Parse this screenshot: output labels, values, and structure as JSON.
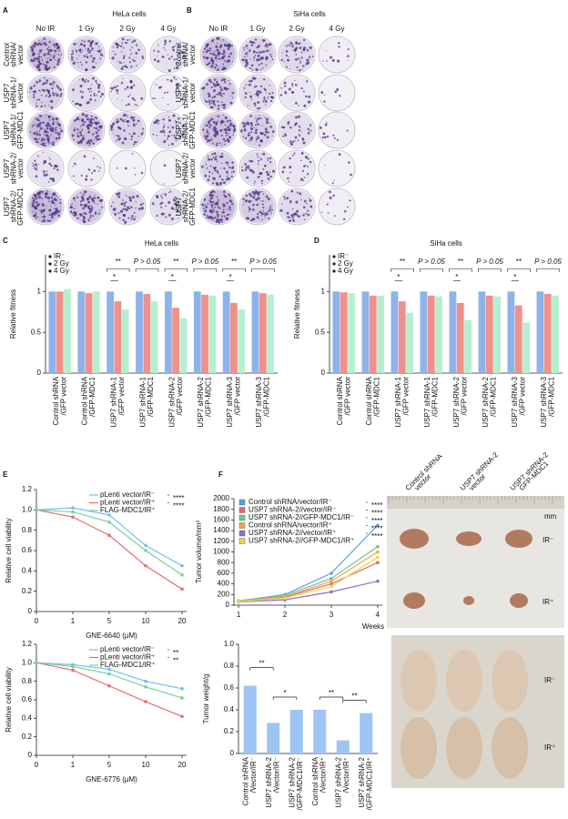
{
  "panel_labels": [
    "A",
    "B",
    "C",
    "D",
    "E",
    "F"
  ],
  "colony_assays": [
    {
      "title": "HeLa cells",
      "columns": [
        "No IR",
        "1 Gy",
        "2 Gy",
        "4 Gy"
      ],
      "rows": [
        [
          "Control",
          "shRNA/",
          "vector"
        ],
        [
          "USP7",
          "shRNA-1/",
          "vector"
        ],
        [
          "USP7",
          "shRNA-1/",
          "GFP-MDC1"
        ],
        [
          "USP7",
          "shRNA-2/",
          "vector"
        ],
        [
          "USP7",
          "shRNA-2/",
          "GFP-MDC1"
        ]
      ]
    },
    {
      "title": "SiHa cells",
      "columns": [
        "No IR",
        "1 Gy",
        "2 Gy",
        "4 Gy"
      ],
      "rows": [
        [
          "Control",
          "shRNA/",
          "vector"
        ],
        [
          "USP7",
          "shRNA-1/",
          "vector"
        ],
        [
          "USP7",
          "shRNA-1/",
          "GFP-MDC1"
        ],
        [
          "USP7",
          "shRNA-2/",
          "vector"
        ],
        [
          "USP7",
          "shRNA-2/",
          "GFP-MDC1"
        ]
      ]
    }
  ],
  "chart_data": [
    {
      "type": "bar",
      "title": "HeLa cells",
      "y_label": "Relative fitness",
      "categories": [
        [
          "Control shRNA",
          "/GFP vector"
        ],
        [
          "Control shRNA",
          "/GFP-MDC1"
        ],
        [
          "USP7 shRNA-1",
          "/GFP vector"
        ],
        [
          "USP7 shRNA-1",
          "/GFP-MDC1"
        ],
        [
          "USP7 shRNA-2",
          "/GFP vector"
        ],
        [
          "USP7 shRNA-2",
          "/GFP-MDC1"
        ],
        [
          "USP7 shRNA-3",
          "/GFP vector"
        ],
        [
          "USP7 shRNA-3",
          "/GFP-MDC1"
        ]
      ],
      "series": [
        {
          "name": "IR⁻",
          "color": "#8db3ea",
          "values": [
            1,
            1,
            1,
            1,
            1,
            1,
            1,
            1
          ]
        },
        {
          "name": "2 Gy",
          "color": "#f0908a",
          "values": [
            1,
            0.98,
            0.88,
            0.97,
            0.8,
            0.96,
            0.86,
            0.98
          ]
        },
        {
          "name": "4 Gy",
          "color": "#b5efcf",
          "values": [
            1.03,
            1,
            0.78,
            0.88,
            0.67,
            0.95,
            0.78,
            0.96
          ]
        }
      ],
      "ylim": [
        0,
        1.45
      ],
      "yticks": [
        0,
        0.5,
        1
      ],
      "annotations": [
        {
          "top": "**",
          "inner": "*"
        },
        {
          "top": "P > 0.05"
        },
        {
          "top": "**",
          "inner": "*"
        },
        {
          "top": "P > 0.05"
        },
        {
          "top": "**",
          "inner": "*"
        },
        {
          "top": "P > 0.05"
        }
      ]
    },
    {
      "type": "bar",
      "title": "SiHa cells",
      "y_label": "Relative fitness",
      "categories": [
        [
          "Control shRNA",
          "/GFP vector"
        ],
        [
          "Control shRNA",
          "/GFP-MDC1"
        ],
        [
          "USP7 shRNA-1",
          "/GFP vector"
        ],
        [
          "USP7 shRNA-1",
          "/GFP-MDC1"
        ],
        [
          "USP7 shRNA-2",
          "/GFP vector"
        ],
        [
          "USP7 shRNA-2",
          "/GFP-MDC1"
        ],
        [
          "USP7 shRNA-3",
          "/GFP vector"
        ],
        [
          "USP7 shRNA-3",
          "/GFP-MDC1"
        ]
      ],
      "series": [
        {
          "name": "IR⁻",
          "color": "#8db3ea",
          "values": [
            1,
            1,
            1,
            1,
            1,
            1,
            1,
            1
          ]
        },
        {
          "name": "2 Gy",
          "color": "#f0908a",
          "values": [
            0.99,
            0.95,
            0.88,
            0.95,
            0.86,
            0.95,
            0.83,
            0.97
          ]
        },
        {
          "name": "4 Gy",
          "color": "#b5efcf",
          "values": [
            0.98,
            0.95,
            0.74,
            0.94,
            0.65,
            0.94,
            0.62,
            0.95
          ]
        }
      ],
      "ylim": [
        0,
        1.45
      ],
      "yticks": [
        0,
        0.5,
        1
      ],
      "annotations": [
        {
          "top": "**",
          "inner": "*"
        },
        {
          "top": "P > 0.05"
        },
        {
          "top": "**",
          "inner": "*"
        },
        {
          "top": "P > 0.05"
        },
        {
          "top": "**",
          "inner": "*"
        },
        {
          "top": "P > 0.05"
        }
      ]
    },
    {
      "type": "line",
      "x_label": "GNE-6640 (μM)",
      "y_label": "Relative cell viability",
      "categories": [
        "0",
        "1",
        "5",
        "10",
        "20"
      ],
      "series": [
        {
          "name": "pLenti vector/IR⁻",
          "color": "#6fbfee",
          "values": [
            1,
            1.02,
            0.95,
            0.65,
            0.45
          ]
        },
        {
          "name": "pLenti vector/IR⁺",
          "color": "#e46d6d",
          "values": [
            1,
            0.93,
            0.75,
            0.45,
            0.22
          ]
        },
        {
          "name": "FLAG-MDC1/IR⁺",
          "color": "#7ccf9c",
          "values": [
            1,
            0.98,
            0.88,
            0.6,
            0.36
          ]
        }
      ],
      "ylim": [
        0,
        1.2
      ],
      "yticks": [
        0,
        0.2,
        0.4,
        0.6,
        0.8,
        {
          "value": 1,
          "label": "1.0"
        },
        1.2
      ],
      "significance": [
        "****",
        "****"
      ]
    },
    {
      "type": "line",
      "x_label": "GNE-6776 (μM)",
      "y_label": "Relative cell viability",
      "categories": [
        "0",
        "1",
        "5",
        "10",
        "20"
      ],
      "series": [
        {
          "name": "pLenti vector/IR⁻",
          "color": "#6fbfee",
          "values": [
            1,
            0.98,
            0.93,
            0.8,
            0.72
          ]
        },
        {
          "name": "pLenti vector/IR⁺",
          "color": "#e46d6d",
          "values": [
            1,
            0.92,
            0.75,
            0.58,
            0.42
          ]
        },
        {
          "name": "FLAG-MDC1/IR⁺",
          "color": "#7ccf9c",
          "values": [
            1,
            0.96,
            0.88,
            0.74,
            0.62
          ]
        }
      ],
      "ylim": [
        0,
        1.2
      ],
      "yticks": [
        0,
        0.2,
        0.4,
        0.6,
        0.8,
        {
          "value": 1,
          "label": "1.0"
        },
        1.2
      ],
      "significance": [
        "**",
        "**"
      ]
    },
    {
      "type": "line",
      "x_label": "Weeks",
      "y_label": "Tumor volume/mm³",
      "x": [
        1,
        2,
        3,
        4
      ],
      "xlim": [
        0.9,
        4.1
      ],
      "xticks": [
        1,
        2,
        3,
        4
      ],
      "series": [
        {
          "name": "Control shRNA/vector/IR⁻",
          "color": "#5f9ee8",
          "values": [
            80,
            200,
            600,
            1500
          ]
        },
        {
          "name": "USP7 shRNA-2//vector/IR⁻",
          "color": "#e36a6a",
          "values": [
            70,
            150,
            400,
            800
          ]
        },
        {
          "name": "USP7 shRNA-2//GFP-MDC1/IR⁻",
          "color": "#6cc98f",
          "values": [
            75,
            180,
            500,
            1100
          ]
        },
        {
          "name": "Control shRNA/vector/IR⁺",
          "color": "#f0a15a",
          "values": [
            70,
            160,
            450,
            1000
          ]
        },
        {
          "name": "USP7 shRNA-2//vector/IR⁺",
          "color": "#8a6fd6",
          "values": [
            60,
            100,
            250,
            450
          ]
        },
        {
          "name": "USP7 shRNA-2//GFP-MDC1/IR⁺",
          "color": "#e8d84a",
          "values": [
            65,
            130,
            350,
            900
          ]
        }
      ],
      "ylim": [
        0,
        2000
      ],
      "yticks": [
        0,
        200,
        400,
        600,
        800,
        1000,
        1200,
        1400,
        1600,
        1800,
        2000
      ],
      "significance": [
        "****",
        "****",
        "****",
        "****",
        "****"
      ]
    },
    {
      "type": "bar",
      "y_label": "Tumor weight/g",
      "categories": [
        [
          "Control shRNA",
          "/Vector/IR⁻"
        ],
        [
          "USP7 shRNA-2",
          "/Vector/IR⁻"
        ],
        [
          "USP7 shRNA-2",
          "/GFP-MDC1/IR⁻"
        ],
        [
          "Control shRNA",
          "/Vector/IR⁺"
        ],
        [
          "USP7 shRNA-2",
          "/Vector/IR⁺"
        ],
        [
          "USP7 shRNA-2",
          "/GFP-MDC1/IR⁺"
        ]
      ],
      "values": [
        0.62,
        0.28,
        0.4,
        0.4,
        0.12,
        0.37
      ],
      "color": "#9ec5f2",
      "ylim": [
        0,
        1
      ],
      "yticks": [
        0,
        0.2,
        0.4,
        0.6,
        0.8,
        {
          "value": 1,
          "label": "1.0"
        }
      ],
      "significance": [
        "**",
        "*",
        "**",
        "**"
      ]
    }
  ],
  "tumor_photo": {
    "groups": [
      [
        "Control shRNA",
        "vector"
      ],
      [
        "USP7 shRNA-2",
        "vector"
      ],
      [
        "USP7 shRNA-2",
        "GFP-MDC1"
      ]
    ],
    "scale_unit": "mm",
    "conditions": [
      "IR⁻",
      "IR⁺"
    ]
  },
  "mouse_photo": {
    "conditions": [
      "IR⁻",
      "IR⁺"
    ]
  }
}
